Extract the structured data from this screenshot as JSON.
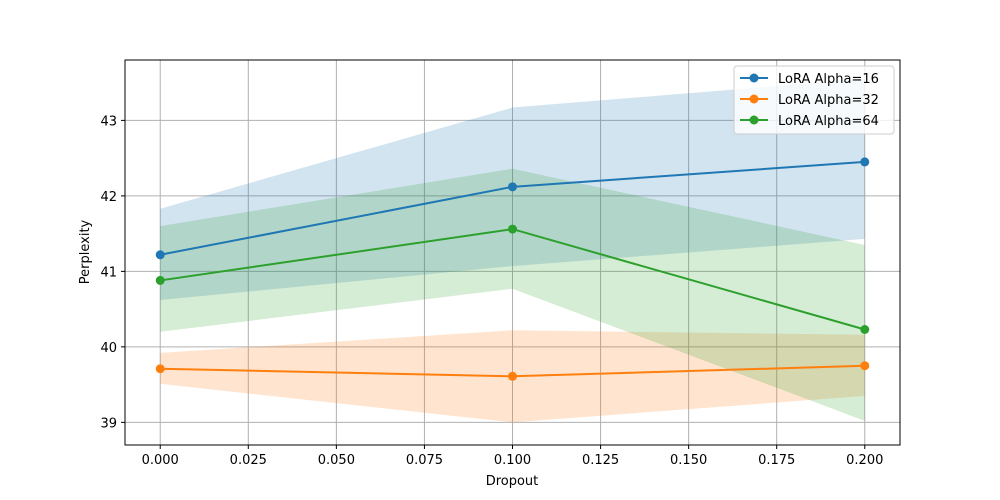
{
  "chart_data": {
    "type": "line",
    "title": "",
    "xlabel": "Dropout",
    "ylabel": "Perplexity",
    "x": [
      0.0,
      0.1,
      0.2
    ],
    "xlim": [
      -0.01,
      0.21
    ],
    "ylim": [
      38.7,
      43.8
    ],
    "xticks": [
      "0.000",
      "0.025",
      "0.050",
      "0.075",
      "0.100",
      "0.125",
      "0.150",
      "0.175",
      "0.200"
    ],
    "xtick_values": [
      0.0,
      0.025,
      0.05,
      0.075,
      0.1,
      0.125,
      0.15,
      0.175,
      0.2
    ],
    "yticks": [
      "39",
      "40",
      "41",
      "42",
      "43"
    ],
    "ytick_values": [
      39,
      40,
      41,
      42,
      43
    ],
    "grid": true,
    "legend_position": "top-right",
    "series": [
      {
        "name": "LoRA Alpha=16",
        "color": "#1f77b4",
        "values": [
          41.22,
          42.12,
          42.45
        ],
        "lower": [
          40.62,
          41.07,
          41.43
        ],
        "upper": [
          41.83,
          43.17,
          43.55
        ]
      },
      {
        "name": "LoRA Alpha=32",
        "color": "#ff7f0e",
        "values": [
          39.71,
          39.61,
          39.75
        ],
        "lower": [
          39.51,
          39.0,
          39.35
        ],
        "upper": [
          39.92,
          40.22,
          40.16
        ]
      },
      {
        "name": "LoRA Alpha=64",
        "color": "#2ca02c",
        "values": [
          40.88,
          41.56,
          40.23
        ],
        "lower": [
          40.2,
          40.77,
          39.02
        ],
        "upper": [
          41.6,
          42.36,
          41.35
        ]
      }
    ]
  }
}
